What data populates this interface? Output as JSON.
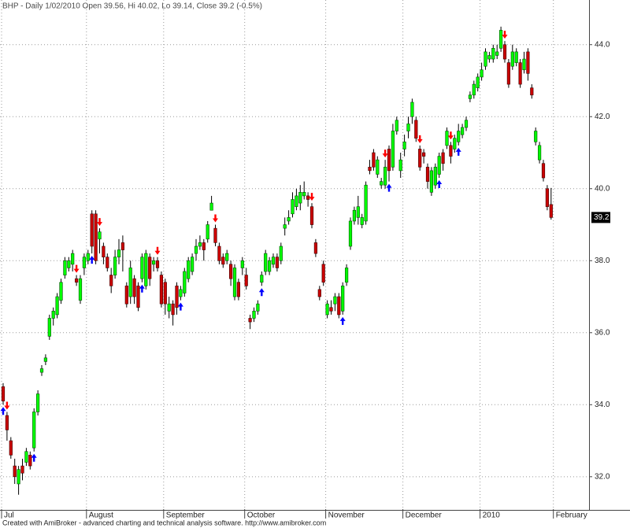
{
  "chart_data": {
    "type": "candlestick",
    "title": "BHP - Daily 1/02/2010 Open 39.56, Hi 40.02, Lo 39.14, Close 39.2 (-0.5%)",
    "footer": "Created with AmiBroker - advanced charting and technical analysis software. http://www.amibroker.com",
    "up_color": "#00ff00",
    "down_color": "#cc0000",
    "buy_color": "#0000ff",
    "sell_color": "#ff0000",
    "grid": true,
    "ylim": [
      31.1,
      45.24
    ],
    "yticks": [
      {
        "value": 32,
        "label": "32.0"
      },
      {
        "value": 34,
        "label": "34.0"
      },
      {
        "value": 36,
        "label": "36.0"
      },
      {
        "value": 38,
        "label": "38.0"
      },
      {
        "value": 40,
        "label": "40.0"
      },
      {
        "value": 42,
        "label": "42.0"
      },
      {
        "value": 44,
        "label": "44.0"
      }
    ],
    "xticks": [
      {
        "value": 0,
        "label": "Jul"
      },
      {
        "value": 22,
        "label": "August"
      },
      {
        "value": 42,
        "label": "September"
      },
      {
        "value": 63,
        "label": "October"
      },
      {
        "value": 84,
        "label": "November"
      },
      {
        "value": 104,
        "label": "December"
      },
      {
        "value": 124,
        "label": "2010"
      },
      {
        "value": 143,
        "label": "February"
      }
    ],
    "open": [
      34.5,
      33.7,
      33.0,
      32.3,
      31.8,
      32.3,
      32.4,
      32.6,
      32.8,
      33.8,
      34.9,
      35.2,
      35.9,
      36.4,
      36.5,
      36.9,
      37.6,
      37.8,
      37.9,
      37.5,
      36.9,
      37.8,
      38.0,
      39.3,
      39.3,
      38.6,
      38.4,
      38.1,
      37.6,
      37.6,
      38.1,
      38.5,
      37.3,
      37.0,
      37.5,
      37.3,
      37.5,
      37.3,
      38.1,
      37.9,
      38.0,
      37.6,
      37.4,
      36.6,
      36.8,
      37.3,
      37.0,
      37.1,
      37.5,
      37.7,
      38.2,
      38.4,
      38.5,
      38.6,
      39.4,
      38.9,
      38.4,
      38.1,
      38.0,
      37.9,
      37.0,
      37.4,
      37.8,
      37.6,
      36.4,
      36.4,
      36.6,
      37.4,
      37.7,
      37.7,
      37.9,
      38.1,
      38.0,
      38.9,
      39.1,
      39.3,
      39.5,
      39.6,
      39.8,
      39.8,
      39.5,
      38.5,
      37.2,
      37.9,
      36.5,
      36.7,
      36.8,
      37.0,
      36.6,
      37.4,
      38.4,
      39.1,
      39.2,
      39.0,
      39.1,
      40.6,
      41.0,
      40.4,
      40.1,
      40.1,
      41.1,
      40.6,
      41.6,
      40.5,
      41.1,
      41.6,
      42.0,
      41.9,
      41.1,
      41.0,
      40.6,
      39.9,
      40.1,
      40.4,
      41.0,
      41.2,
      41.2,
      41.1,
      41.3,
      41.5,
      41.7,
      42.5,
      42.6,
      42.8,
      43.1,
      43.4,
      43.6,
      43.6,
      43.7,
      43.9,
      44.0,
      43.5,
      43.4,
      43.5,
      43.5,
      43.3,
      43.8,
      42.8,
      41.3,
      40.8,
      40.7,
      40.0,
      39.56
    ],
    "high": [
      34.6,
      33.8,
      33.1,
      32.5,
      32.3,
      32.5,
      32.8,
      32.7,
      33.9,
      34.4,
      35.1,
      35.4,
      36.5,
      36.7,
      37.1,
      37.5,
      38.1,
      38.1,
      38.3,
      37.6,
      37.6,
      38.2,
      38.3,
      39.4,
      39.4,
      38.9,
      38.5,
      38.2,
      37.8,
      38.3,
      38.6,
      38.7,
      37.4,
      38.0,
      37.6,
      37.4,
      38.2,
      38.3,
      38.2,
      38.1,
      38.1,
      37.7,
      37.5,
      37.0,
      36.9,
      37.4,
      37.3,
      37.8,
      38.1,
      38.2,
      38.6,
      38.7,
      38.6,
      39.1,
      39.8,
      39.0,
      38.5,
      38.2,
      38.3,
      38.0,
      37.9,
      37.5,
      38.1,
      37.8,
      36.5,
      36.7,
      36.9,
      37.7,
      38.3,
      38.1,
      38.2,
      38.2,
      38.5,
      39.2,
      39.4,
      39.9,
      40.0,
      40.1,
      40.2,
      39.9,
      39.6,
      38.6,
      37.3,
      38.0,
      36.9,
      36.9,
      37.1,
      37.1,
      37.4,
      37.9,
      39.2,
      39.5,
      39.8,
      39.3,
      40.2,
      40.8,
      41.1,
      40.9,
      40.3,
      40.8,
      41.2,
      41.8,
      42.0,
      41.0,
      41.5,
      42.0,
      42.5,
      42.0,
      41.2,
      41.1,
      40.7,
      40.6,
      40.7,
      41.0,
      41.1,
      41.7,
      41.3,
      41.5,
      41.8,
      41.8,
      42.0,
      42.7,
      43.0,
      43.2,
      43.5,
      43.9,
      43.8,
      44.0,
      44.0,
      44.5,
      44.1,
      43.6,
      44.0,
      43.9,
      43.6,
      43.8,
      43.9,
      42.9,
      41.7,
      41.3,
      40.8,
      40.1,
      40.02
    ],
    "low": [
      34.0,
      33.0,
      32.5,
      31.8,
      31.5,
      31.9,
      32.3,
      32.2,
      32.7,
      33.7,
      34.8,
      35.1,
      35.8,
      36.2,
      36.4,
      36.8,
      37.5,
      37.7,
      37.7,
      37.3,
      36.8,
      37.6,
      37.9,
      38.2,
      37.9,
      38.2,
      37.9,
      37.7,
      37.1,
      37.5,
      37.9,
      37.7,
      36.7,
      36.8,
      36.8,
      36.6,
      37.4,
      37.2,
      37.3,
      37.7,
      37.7,
      36.7,
      36.5,
      36.4,
      36.2,
      36.5,
      36.9,
      37.0,
      37.4,
      37.6,
      38.0,
      38.3,
      38.0,
      38.5,
      39.4,
      38.4,
      37.9,
      37.8,
      37.9,
      37.3,
      36.9,
      36.9,
      37.6,
      37.2,
      36.1,
      36.3,
      36.5,
      37.3,
      37.6,
      37.6,
      37.8,
      37.7,
      37.9,
      38.7,
      39.0,
      39.2,
      39.4,
      39.4,
      39.7,
      39.5,
      38.9,
      38.1,
      36.9,
      37.3,
      36.4,
      36.5,
      36.6,
      36.4,
      36.5,
      37.3,
      38.3,
      39.0,
      39.0,
      38.9,
      39.0,
      40.4,
      40.5,
      40.3,
      40.0,
      40.0,
      40.2,
      40.5,
      41.5,
      40.3,
      40.9,
      41.4,
      41.8,
      41.3,
      40.5,
      40.7,
      40.0,
      39.8,
      40.0,
      40.3,
      40.5,
      41.1,
      40.7,
      41.0,
      41.2,
      41.4,
      41.6,
      42.4,
      42.5,
      42.7,
      43.0,
      43.3,
      43.5,
      43.5,
      43.6,
      43.8,
      43.5,
      42.8,
      43.3,
      43.4,
      42.8,
      43.2,
      43.0,
      42.5,
      41.2,
      40.7,
      40.2,
      39.4,
      39.14
    ],
    "close": [
      34.1,
      33.3,
      32.6,
      32.0,
      32.2,
      32.1,
      32.7,
      32.3,
      33.8,
      34.3,
      35.0,
      35.3,
      36.4,
      36.6,
      37.0,
      37.4,
      38.0,
      38.0,
      38.2,
      37.4,
      37.5,
      38.1,
      38.2,
      38.4,
      38.0,
      38.8,
      38.1,
      37.8,
      37.3,
      38.1,
      38.3,
      38.3,
      36.8,
      37.8,
      37.0,
      36.7,
      38.1,
      38.2,
      37.5,
      38.0,
      37.8,
      36.8,
      36.8,
      36.8,
      36.5,
      36.7,
      37.2,
      37.7,
      38.0,
      38.1,
      38.4,
      38.5,
      38.3,
      39.0,
      39.6,
      38.5,
      38.0,
      37.9,
      38.2,
      37.5,
      37.8,
      37.0,
      38.0,
      37.3,
      36.3,
      36.6,
      36.8,
      37.6,
      38.2,
      38.0,
      38.1,
      37.8,
      38.4,
      39.0,
      39.2,
      39.7,
      39.8,
      39.9,
      39.9,
      39.7,
      39.0,
      38.2,
      37.0,
      37.4,
      36.8,
      36.6,
      37.0,
      36.5,
      37.3,
      37.8,
      39.1,
      39.4,
      39.5,
      39.2,
      40.1,
      40.5,
      40.6,
      40.8,
      40.2,
      40.6,
      40.5,
      41.6,
      41.9,
      40.8,
      41.3,
      41.8,
      42.4,
      41.4,
      40.6,
      40.9,
      40.2,
      40.5,
      40.6,
      40.9,
      40.7,
      41.6,
      40.9,
      41.4,
      41.6,
      41.7,
      41.9,
      42.6,
      42.9,
      43.1,
      43.3,
      43.8,
      43.7,
      43.9,
      43.8,
      44.4,
      43.6,
      42.9,
      43.8,
      43.8,
      42.9,
      43.6,
      43.2,
      42.6,
      41.6,
      41.2,
      40.3,
      39.5,
      39.2
    ],
    "buy_signals": [
      0,
      8,
      23,
      36,
      46,
      67,
      88,
      100,
      113,
      118
    ],
    "sell_signals": [
      1,
      19,
      25,
      40,
      55,
      80,
      99,
      108,
      116,
      130
    ]
  }
}
